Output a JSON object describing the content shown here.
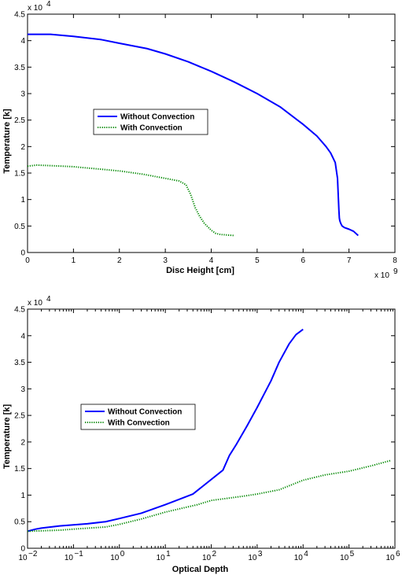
{
  "chart_data": [
    {
      "type": "line",
      "xlabel": "Disc Height [cm]",
      "ylabel": "Temperature [k]",
      "x_multiplier": "x 10",
      "x_multiplier_exp": "9",
      "y_multiplier": "x 10",
      "y_multiplier_exp": "4",
      "xlim": [
        0,
        8
      ],
      "ylim": [
        0,
        4.5
      ],
      "xticks": [
        0,
        1,
        2,
        3,
        4,
        5,
        6,
        7,
        8
      ],
      "xtick_labels": [
        "0",
        "1",
        "2",
        "3",
        "4",
        "5",
        "6",
        "7",
        "8"
      ],
      "yticks": [
        0,
        0.5,
        1,
        1.5,
        2,
        2.5,
        3,
        3.5,
        4,
        4.5
      ],
      "ytick_labels": [
        "0",
        "0.5",
        "1",
        "1.5",
        "2",
        "2.5",
        "3",
        "3.5",
        "4",
        "4.5"
      ],
      "legend_position": "center-left",
      "series": [
        {
          "name": "Without Convection",
          "color": "#0000ff",
          "style": "solid",
          "x": [
            0,
            0.5,
            1.0,
            1.6,
            2.0,
            2.6,
            3.0,
            3.5,
            4.0,
            4.5,
            5.0,
            5.5,
            6.0,
            6.3,
            6.5,
            6.6,
            6.7,
            6.75,
            6.77,
            6.78,
            6.79,
            6.8,
            6.82,
            6.85,
            6.9,
            7.0,
            7.1,
            7.2
          ],
          "y": [
            4.12,
            4.12,
            4.08,
            4.02,
            3.95,
            3.85,
            3.75,
            3.6,
            3.42,
            3.22,
            3.0,
            2.75,
            2.42,
            2.2,
            2.0,
            1.88,
            1.7,
            1.4,
            1.0,
            0.8,
            0.65,
            0.6,
            0.55,
            0.5,
            0.47,
            0.44,
            0.4,
            0.32
          ]
        },
        {
          "name": "With Convection",
          "color": "#008800",
          "style": "dotted",
          "x": [
            0,
            0.2,
            0.5,
            1.0,
            1.5,
            2.0,
            2.5,
            3.0,
            3.3,
            3.45,
            3.55,
            3.65,
            3.75,
            3.85,
            4.0,
            4.1,
            4.2,
            4.35,
            4.5
          ],
          "y": [
            1.63,
            1.65,
            1.64,
            1.62,
            1.58,
            1.54,
            1.48,
            1.4,
            1.35,
            1.28,
            1.1,
            0.85,
            0.68,
            0.55,
            0.42,
            0.36,
            0.34,
            0.33,
            0.32
          ]
        }
      ]
    },
    {
      "type": "line",
      "xlabel": "Optical Depth",
      "ylabel": "Temperature [k]",
      "x_scale": "log",
      "y_multiplier": "x 10",
      "y_multiplier_exp": "4",
      "xlim": [
        0.01,
        1000000
      ],
      "ylim": [
        0,
        4.5
      ],
      "xticks": [
        0.01,
        0.1,
        1,
        10,
        100,
        1000,
        10000,
        100000,
        1000000
      ],
      "xtick_labels": [
        {
          "base": "10",
          "exp": "−2"
        },
        {
          "base": "10",
          "exp": "−1"
        },
        {
          "base": "10",
          "exp": "0"
        },
        {
          "base": "10",
          "exp": "1"
        },
        {
          "base": "10",
          "exp": "2"
        },
        {
          "base": "10",
          "exp": "3"
        },
        {
          "base": "10",
          "exp": "4"
        },
        {
          "base": "10",
          "exp": "5"
        },
        {
          "base": "10",
          "exp": "6"
        }
      ],
      "yticks": [
        0,
        0.5,
        1,
        1.5,
        2,
        2.5,
        3,
        3.5,
        4,
        4.5
      ],
      "ytick_labels": [
        "0",
        "0.5",
        "1",
        "1.5",
        "2",
        "2.5",
        "3",
        "3.5",
        "4",
        "4.5"
      ],
      "legend_position": "center-left",
      "series": [
        {
          "name": "Without Convection",
          "color": "#0000ff",
          "style": "solid",
          "x": [
            0.01,
            0.015,
            0.02,
            0.05,
            0.1,
            0.2,
            0.5,
            1,
            3,
            10,
            40,
            180,
            250,
            350,
            600,
            1000,
            2000,
            3000,
            5000,
            7000,
            10000
          ],
          "y": [
            0.32,
            0.36,
            0.38,
            0.42,
            0.44,
            0.46,
            0.5,
            0.56,
            0.66,
            0.82,
            1.02,
            1.47,
            1.75,
            1.95,
            2.3,
            2.65,
            3.15,
            3.5,
            3.85,
            4.02,
            4.12
          ]
        },
        {
          "name": "With Convection",
          "color": "#008800",
          "style": "dotted",
          "x": [
            0.01,
            0.05,
            0.1,
            0.5,
            1,
            3,
            10,
            50,
            100,
            500,
            1000,
            3000,
            10000,
            30000,
            100000,
            300000,
            800000
          ],
          "y": [
            0.32,
            0.34,
            0.36,
            0.4,
            0.45,
            0.55,
            0.68,
            0.82,
            0.9,
            0.98,
            1.02,
            1.1,
            1.28,
            1.38,
            1.45,
            1.55,
            1.65
          ]
        }
      ]
    }
  ]
}
